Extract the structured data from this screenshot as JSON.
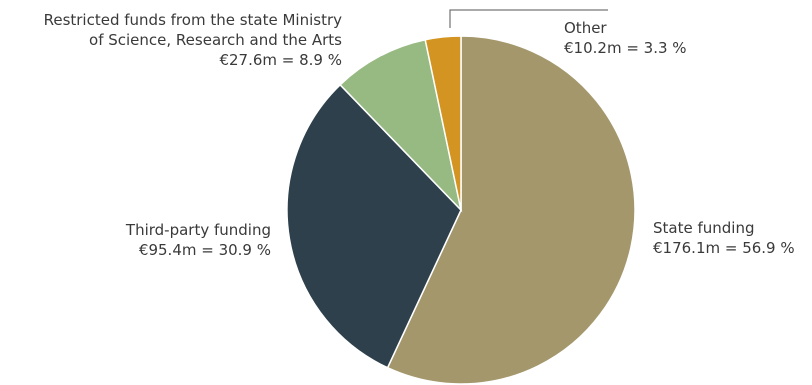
{
  "chart_data": {
    "type": "pie",
    "unit": "€m",
    "slices": [
      {
        "label": "State funding",
        "value_text": "€176.1m = 56.9 %",
        "value": 176.1,
        "percent": 56.9,
        "color": "#a4976c"
      },
      {
        "label": "Third-party funding",
        "value_text": "€95.4m = 30.9 %",
        "value": 95.4,
        "percent": 30.9,
        "color": "#2e404c"
      },
      {
        "label_lines": [
          "Restricted funds from the state Ministry",
          "of Science, Research and the Arts"
        ],
        "value_text": "€27.6m = 8.9 %",
        "value": 27.6,
        "percent": 8.9,
        "color": "#97ba82"
      },
      {
        "label": "Other",
        "value_text": "€10.2m = 3.3 %",
        "value": 10.2,
        "percent": 3.3,
        "color": "#d39422"
      }
    ]
  }
}
